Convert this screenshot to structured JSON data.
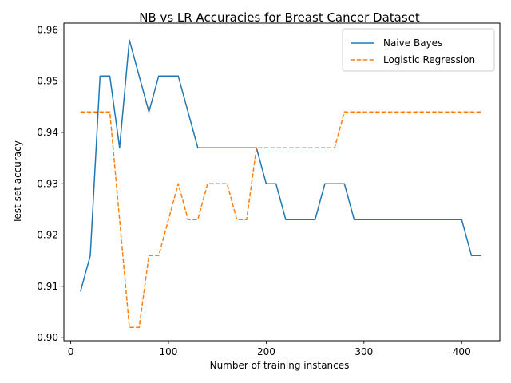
{
  "chart_data": {
    "type": "line",
    "title": "NB vs LR Accuracies for Breast Cancer Dataset",
    "xlabel": "Number of training instances",
    "ylabel": "Test set accuracy",
    "xlim": [
      -7,
      439
    ],
    "ylim": [
      0.8994,
      0.9613
    ],
    "xticks": [
      0,
      100,
      200,
      300,
      400
    ],
    "yticks": [
      0.9,
      0.91,
      0.92,
      0.93,
      0.94,
      0.95,
      0.96
    ],
    "ytick_labels": [
      "0.90",
      "0.91",
      "0.92",
      "0.93",
      "0.94",
      "0.95",
      "0.96"
    ],
    "grid": false,
    "legend_position": "top-right",
    "x": [
      10,
      20,
      30,
      40,
      50,
      60,
      70,
      80,
      90,
      100,
      110,
      120,
      130,
      140,
      150,
      160,
      170,
      180,
      190,
      200,
      210,
      220,
      230,
      240,
      250,
      260,
      270,
      280,
      290,
      300,
      310,
      320,
      330,
      340,
      350,
      360,
      370,
      380,
      390,
      400,
      410,
      420
    ],
    "series": [
      {
        "name": "Naive Bayes",
        "color": "#1f77b4",
        "dash": "solid",
        "values": [
          0.909,
          0.916,
          0.951,
          0.951,
          0.937,
          0.958,
          0.951,
          0.944,
          0.951,
          0.951,
          0.951,
          0.944,
          0.937,
          0.937,
          0.937,
          0.937,
          0.937,
          0.937,
          0.937,
          0.93,
          0.93,
          0.923,
          0.923,
          0.923,
          0.923,
          0.93,
          0.93,
          0.93,
          0.923,
          0.923,
          0.923,
          0.923,
          0.923,
          0.923,
          0.923,
          0.923,
          0.923,
          0.923,
          0.923,
          0.923,
          0.916,
          0.916
        ]
      },
      {
        "name": "Logistic Regression",
        "color": "#ff7f0e",
        "dash": "dashed",
        "values": [
          0.944,
          0.944,
          0.944,
          0.944,
          0.923,
          0.902,
          0.902,
          0.916,
          0.916,
          0.923,
          0.93,
          0.923,
          0.923,
          0.93,
          0.93,
          0.93,
          0.923,
          0.923,
          0.937,
          0.937,
          0.937,
          0.937,
          0.937,
          0.937,
          0.937,
          0.937,
          0.937,
          0.944,
          0.944,
          0.944,
          0.944,
          0.944,
          0.944,
          0.944,
          0.944,
          0.944,
          0.944,
          0.944,
          0.944,
          0.944,
          0.944,
          0.944
        ]
      }
    ]
  }
}
